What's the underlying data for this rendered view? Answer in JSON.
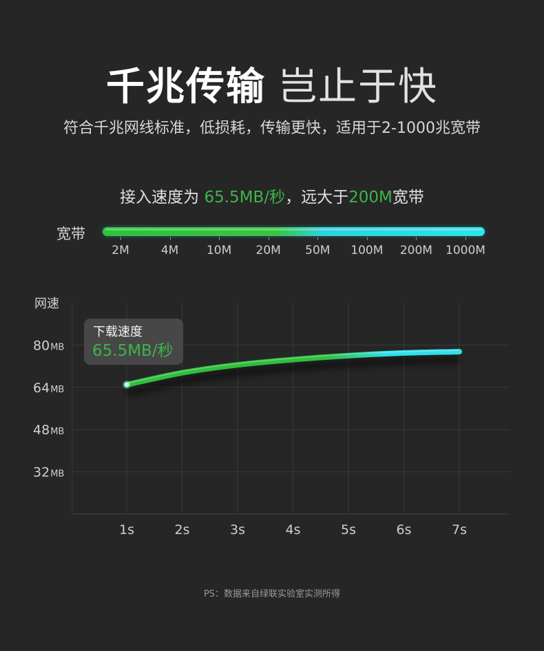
{
  "header": {
    "title_bold": "千兆传输",
    "title_light": "岂止于快",
    "subtitle": "符合千兆网线标准，低损耗，传输更快，适用于2-1000兆宽带"
  },
  "access": {
    "prefix": "接入速度为 ",
    "speed": "65.5MB/秒",
    "middle": "，远大于",
    "bandwidth": "200M",
    "suffix": "宽带"
  },
  "bandwidth_scale": {
    "label": "宽带",
    "ticks": [
      "2M",
      "4M",
      "10M",
      "20M",
      "50M",
      "100M",
      "200M",
      "1000M"
    ],
    "colors": {
      "start": "#2fc23c",
      "end": "#2ee3ea"
    }
  },
  "tooltip": {
    "title": "下载速度",
    "value": "65.5MB/秒"
  },
  "chart_data": {
    "type": "line",
    "ylabel": "网速",
    "xlabel": "",
    "x": [
      "1s",
      "2s",
      "3s",
      "4s",
      "5s",
      "6s",
      "7s"
    ],
    "y_ticks": [
      {
        "value": 80,
        "label": "80",
        "unit": "MB"
      },
      {
        "value": 64,
        "label": "64",
        "unit": "MB"
      },
      {
        "value": 48,
        "label": "48",
        "unit": "MB"
      },
      {
        "value": 32,
        "label": "32",
        "unit": "MB"
      }
    ],
    "ylim": [
      16,
      96
    ],
    "series": [
      {
        "values": [
          65,
          69.5,
          72.5,
          74.5,
          76,
          77,
          77.5
        ]
      }
    ],
    "grid": true,
    "colors": {
      "line_start": "#2fbf3c",
      "line_end": "#2ee0ea",
      "grid": "#3a3a3a"
    }
  },
  "footnote": "PS：数据来自绿联实验室实测所得"
}
